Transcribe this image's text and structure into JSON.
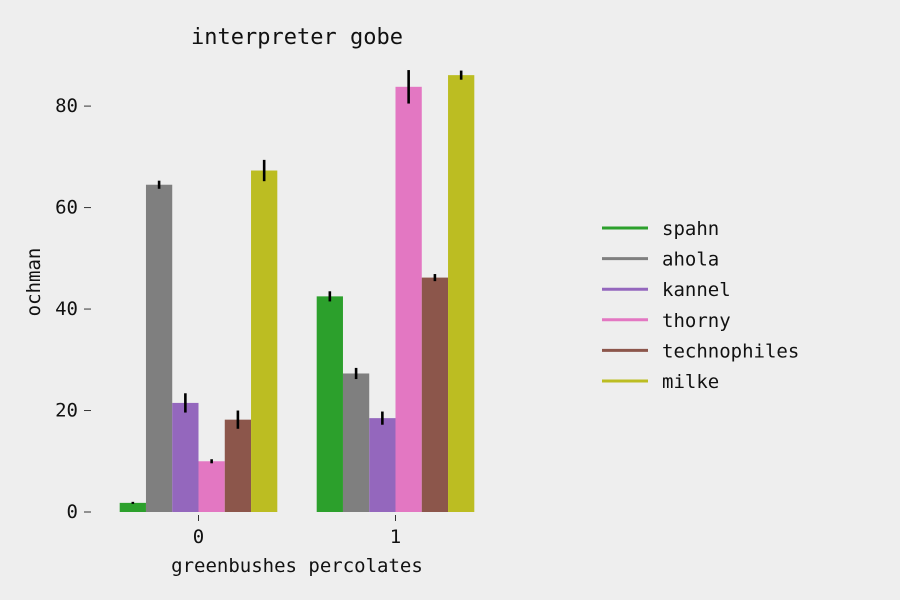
{
  "chart_data": {
    "type": "bar",
    "title": "interpreter gobe",
    "xlabel": "greenbushes percolates",
    "ylabel": "ochman",
    "categories": [
      "0",
      "1"
    ],
    "ylim": [
      0,
      88
    ],
    "yticks": [
      0,
      20,
      40,
      60,
      80
    ],
    "grid": false,
    "legend_position": "right",
    "series": [
      {
        "name": "spahn",
        "color": "#2ca02c",
        "values": [
          1.8,
          42.5
        ],
        "errors": [
          0.2,
          1.0
        ]
      },
      {
        "name": "ahola",
        "color": "#7f7f7f",
        "values": [
          64.5,
          27.3
        ],
        "errors": [
          0.8,
          1.1
        ]
      },
      {
        "name": "kannel",
        "color": "#9467bd",
        "values": [
          21.5,
          18.5
        ],
        "errors": [
          1.9,
          1.3
        ]
      },
      {
        "name": "thorny",
        "color": "#e377c2",
        "values": [
          10.0,
          83.8
        ],
        "errors": [
          0.4,
          3.3
        ]
      },
      {
        "name": "technophiles",
        "color": "#8c564b",
        "values": [
          18.2,
          46.2
        ],
        "errors": [
          1.8,
          0.7
        ]
      },
      {
        "name": "milke",
        "color": "#bcbd22",
        "values": [
          67.3,
          86.1
        ],
        "errors": [
          2.1,
          0.9
        ]
      }
    ]
  }
}
